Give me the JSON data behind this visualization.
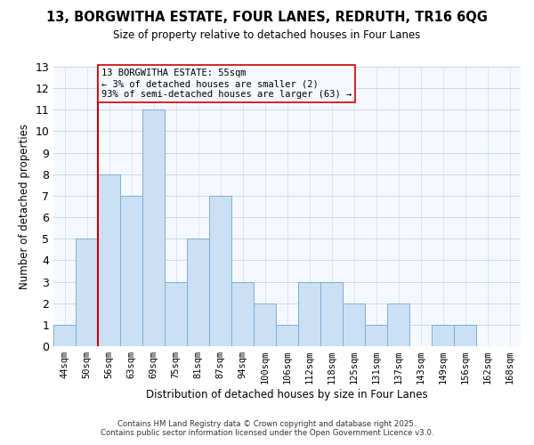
{
  "title": "13, BORGWITHA ESTATE, FOUR LANES, REDRUTH, TR16 6QG",
  "subtitle": "Size of property relative to detached houses in Four Lanes",
  "xlabel": "Distribution of detached houses by size in Four Lanes",
  "ylabel": "Number of detached properties",
  "bin_labels": [
    "44sqm",
    "50sqm",
    "56sqm",
    "63sqm",
    "69sqm",
    "75sqm",
    "81sqm",
    "87sqm",
    "94sqm",
    "100sqm",
    "106sqm",
    "112sqm",
    "118sqm",
    "125sqm",
    "131sqm",
    "137sqm",
    "143sqm",
    "149sqm",
    "156sqm",
    "162sqm",
    "168sqm"
  ],
  "bar_values": [
    1,
    5,
    8,
    7,
    11,
    3,
    5,
    7,
    3,
    2,
    1,
    3,
    3,
    2,
    1,
    2,
    0,
    1,
    1,
    0,
    0
  ],
  "bar_color": "#cce0f5",
  "bar_edge_color": "#7bafd4",
  "grid_color": "#c8d8e8",
  "reference_line_color": "#cc0000",
  "annotation_box_text": "13 BORGWITHA ESTATE: 55sqm\n← 3% of detached houses are smaller (2)\n93% of semi-detached houses are larger (63) →",
  "annotation_box_edge_color": "#cc0000",
  "ylim": [
    0,
    13
  ],
  "yticks": [
    0,
    1,
    2,
    3,
    4,
    5,
    6,
    7,
    8,
    9,
    10,
    11,
    12,
    13
  ],
  "footer_line1": "Contains HM Land Registry data © Crown copyright and database right 2025.",
  "footer_line2": "Contains public sector information licensed under the Open Government Licence v3.0.",
  "bg_color": "#ffffff",
  "plot_bg_color": "#f5f8ff"
}
